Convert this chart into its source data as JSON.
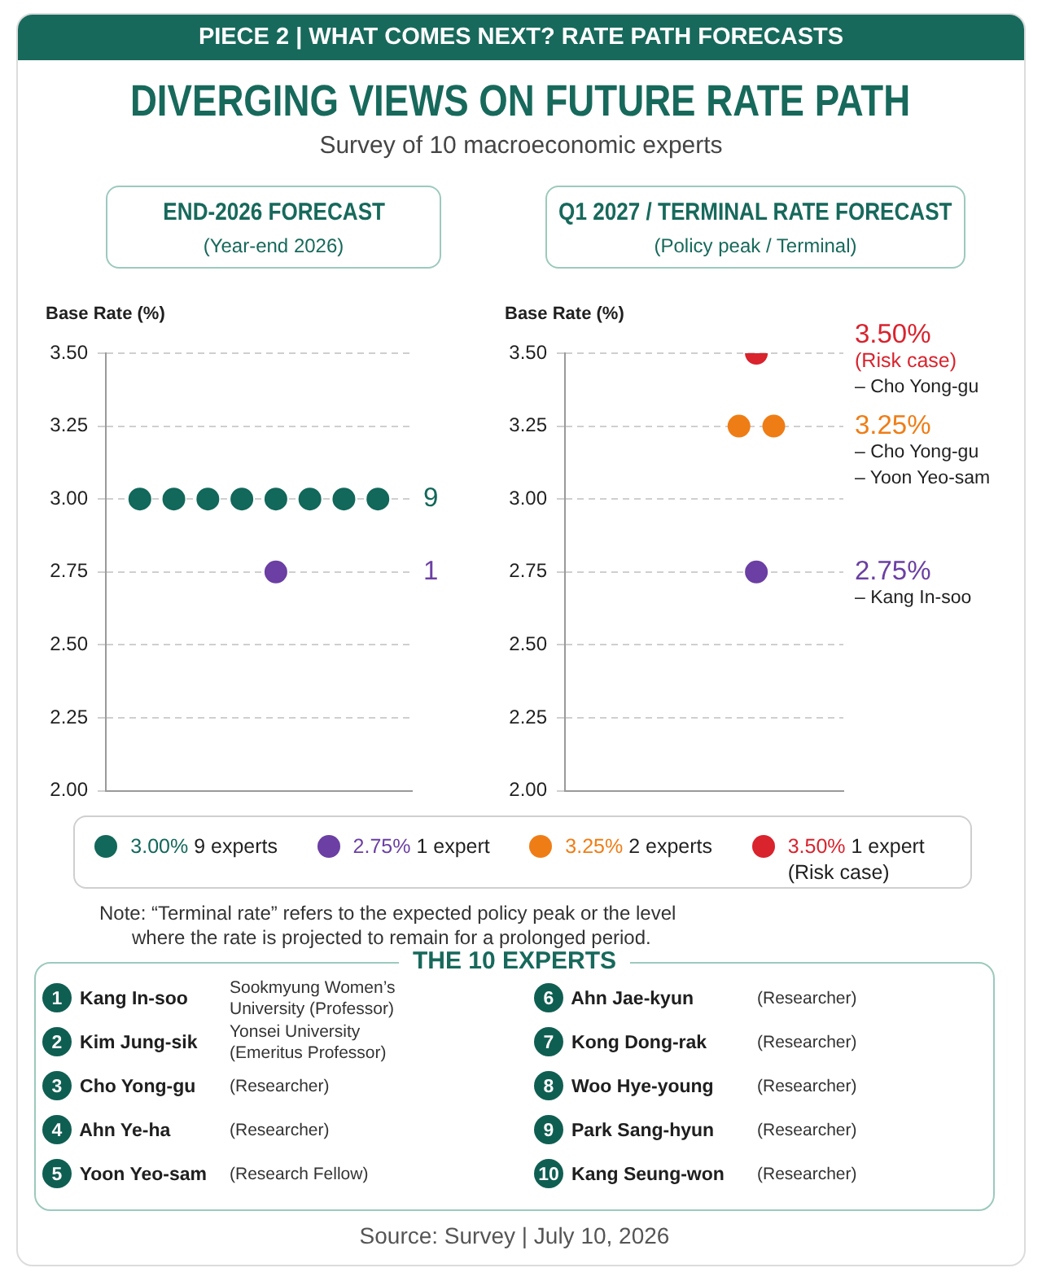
{
  "chart_data": [
    {
      "type": "other",
      "title": "DIVERGING VIEWS ON FUTURE RATE PATH",
      "subtitle": "Survey of 10 macroeconomic experts",
      "annotations": [
        "PIECE 2 | WHAT COMES NEXT? RATE PATH FORECASTS"
      ]
    },
    {
      "type": "scatter",
      "title": "END-2026 FORECAST",
      "subtitle": "(Year-end 2026)",
      "ylabel": "Base Rate (%)",
      "categories": [
        null,
        null,
        null,
        null,
        null,
        null,
        null,
        null,
        null,
        null
      ],
      "series": [
        {
          "name": "3.00% 9 experts",
          "color": "#12685a",
          "values": [
            null,
            3,
            3,
            3,
            3,
            3,
            3,
            3,
            3,
            null
          ]
        },
        {
          "name": "2.75% 1 expert",
          "color": "#6b3fa3",
          "values": [
            null,
            null,
            null,
            null,
            null,
            2.75,
            null,
            null,
            null,
            null
          ]
        }
      ],
      "ylim": [
        2,
        3.5
      ],
      "yticks": [
        {
          "value": 2,
          "label": "2.00"
        },
        2.25,
        {
          "value": 2.5,
          "label": "2.50"
        },
        2.75,
        {
          "value": 3,
          "label": "3.00"
        },
        3.25,
        {
          "value": 3.5,
          "label": "3.50"
        }
      ],
      "grid": "y",
      "legend": "bottom",
      "marker": "circle",
      "tick_labels": "y",
      "annotations": [
        "9",
        "1"
      ]
    },
    {
      "type": "scatter",
      "title": "Q1 2027 / TERMINAL RATE FORECAST",
      "subtitle": "(Policy peak / Terminal)",
      "ylabel": "Base Rate (%)",
      "categories": [
        null,
        null,
        null,
        null,
        null,
        null,
        null,
        null,
        null,
        null,
        null,
        null,
        null,
        null,
        null,
        null,
        null
      ],
      "series": [
        {
          "name": "3.25% 2 experts",
          "color": "#ef7d16",
          "values": [
            null,
            null,
            null,
            null,
            null,
            null,
            null,
            null,
            null,
            null,
            3.25,
            null,
            3.25,
            null,
            null,
            null,
            null
          ]
        },
        {
          "name": "3.50% 1 expert (Risk case)",
          "color": "#d9232d",
          "values": [
            null,
            null,
            null,
            null,
            null,
            null,
            null,
            null,
            null,
            null,
            null,
            3.5,
            null,
            null,
            null,
            null,
            null
          ]
        },
        {
          "color": "#6b3fa3",
          "values": [
            null,
            null,
            null,
            null,
            null,
            null,
            null,
            null,
            null,
            null,
            null,
            2.75,
            null,
            null,
            null,
            null,
            null
          ]
        }
      ],
      "ylim": [
        2,
        3.5
      ],
      "yticks": [
        {
          "value": 2,
          "label": "2.00"
        },
        2.25,
        {
          "value": 2.5,
          "label": "2.50"
        },
        2.75,
        {
          "value": 3,
          "label": "3.00"
        },
        3.25,
        {
          "value": 3.5,
          "label": "3.50"
        }
      ],
      "grid": "y",
      "legend": "bottom",
      "marker": "circle",
      "tick_labels": "y",
      "annotations": [
        "3.50%\n(Risk case)\n– Cho Yong-gu",
        "3.25%\n– Cho Yong-gu\n– Yoon Yeo-sam",
        "2.75%\n– Kang In-soo",
        "Note: “Terminal rate” refers to the expected policy peak or the level where the rate is projected to remain for a prolonged period."
      ]
    },
    {
      "type": "other",
      "title": "THE 10 EXPERTS",
      "annotations": [
        "1 Kang In-soo",
        "Sookmyung Women’s University (Professor)",
        "2 Kim Jung-sik",
        "Yonsei University (Emeritus Professor)",
        "3 Cho Yong-gu",
        "(Researcher)",
        "4 Ahn Ye-ha",
        "(Researcher)",
        "5 Yoon Yeo-sam",
        "(Research Fellow)",
        "6 Ahn Jae-kyun",
        "(Researcher)",
        "7 Kong Dong-rak",
        "(Researcher)",
        "8 Woo Hye-young",
        "(Researcher)",
        "9 Park Sang-hyun",
        "(Researcher)",
        "10 Kang Seung-won",
        "(Researcher)",
        "Source: Survey | July 10, 2026"
      ]
    }
  ]
}
